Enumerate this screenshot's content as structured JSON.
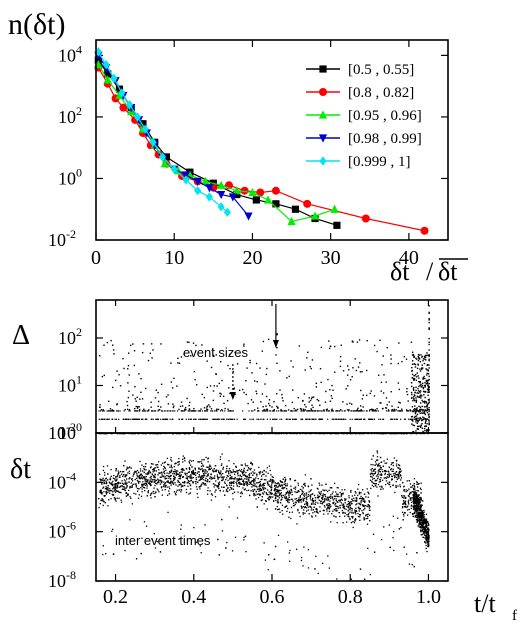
{
  "chart_data": [
    {
      "type": "line",
      "ylabel": "n(δt)",
      "xlabel": "δt/δt̄",
      "xlabel_parts": [
        "δt",
        "/",
        "δt"
      ],
      "xlim": [
        0,
        45
      ],
      "ylim_log10": [
        -2,
        4.5
      ],
      "yscale": "log",
      "x_ticks": [
        0,
        10,
        20,
        30,
        40
      ],
      "y_ticks": [
        {
          "base": "10",
          "exp": "4"
        },
        {
          "base": "10",
          "exp": "2"
        },
        {
          "base": "10",
          "exp": "0"
        },
        {
          "base": "10",
          "exp": "-2"
        }
      ],
      "y_tick_exps": [
        4,
        2,
        0,
        -2
      ],
      "legend": "top-right",
      "series": [
        {
          "name": "[0.5 , 0.55]",
          "color": "#000000",
          "marker": "square",
          "x": [
            0.3,
            1.5,
            3,
            4.5,
            6,
            7.5,
            9,
            12,
            15,
            18,
            20.5,
            23,
            25.5,
            28,
            30.8
          ],
          "y": [
            7000,
            2500,
            800,
            200,
            60,
            15,
            5,
            1.6,
            0.7,
            0.3,
            0.2,
            0.15,
            0.1,
            0.05,
            0.03
          ]
        },
        {
          "name": "[0.8 , 0.82]",
          "color": "#ff0000",
          "marker": "circle",
          "x": [
            0.3,
            1.5,
            2.5,
            3.5,
            5,
            6,
            7,
            8,
            9,
            11,
            13,
            15,
            17,
            19,
            21,
            23,
            27,
            34.5,
            42
          ],
          "y": [
            4000,
            1200,
            400,
            200,
            80,
            30,
            12,
            6,
            3,
            1.2,
            0.8,
            0.5,
            0.6,
            0.4,
            0.35,
            0.4,
            0.15,
            0.05,
            0.02
          ]
        },
        {
          "name": "[0.95 , 0.96]",
          "color": "#00ee00",
          "marker": "triangle",
          "x": [
            0.3,
            1.5,
            3,
            4.5,
            6,
            7.5,
            8.8,
            10.5,
            12,
            14,
            16,
            18,
            20,
            22,
            25,
            28,
            30.5
          ],
          "y": [
            5000,
            1600,
            500,
            150,
            40,
            12,
            3,
            1.8,
            1.3,
            0.8,
            0.6,
            0.4,
            0.35,
            0.2,
            0.04,
            0.06,
            0.1
          ]
        },
        {
          "name": "[0.98 , 0.99]",
          "color": "#0000cc",
          "marker": "triangle-down",
          "x": [
            0.3,
            1.3,
            2.5,
            3.5,
            4.5,
            5.5,
            6.5,
            7.5,
            8.5,
            10,
            11.5,
            13,
            14.5,
            16,
            17.5,
            19.5
          ],
          "y": [
            10000,
            4000,
            1500,
            500,
            200,
            80,
            30,
            12,
            5,
            2,
            1.3,
            0.8,
            0.5,
            0.3,
            0.25,
            0.06
          ]
        },
        {
          "name": "[0.999 , 1]",
          "color": "#00e5ee",
          "marker": "diamond",
          "x": [
            0.3,
            1.3,
            2.3,
            3.3,
            4.3,
            5.3,
            6.3,
            7.3,
            8.5,
            10,
            11.5,
            13,
            14.5,
            16,
            16.8
          ],
          "y": [
            13000,
            5000,
            1800,
            600,
            250,
            100,
            40,
            15,
            5,
            2,
            0.9,
            0.4,
            0.25,
            0.12,
            0.08
          ]
        }
      ]
    },
    {
      "type": "scatter",
      "ylabel": "Δ",
      "yscale": "log",
      "ylim_log10": [
        0,
        2.8
      ],
      "y_ticks": [
        {
          "base": "10",
          "exp": "2"
        },
        {
          "base": "10",
          "exp": "1"
        },
        {
          "base": "10",
          "exp": "0"
        }
      ],
      "y_tick_exps": [
        2,
        1,
        0
      ],
      "annotation": "event sizes",
      "arrows_at_t": [
        0.5,
        0.61
      ]
    },
    {
      "type": "scatter",
      "ylabel": "δt",
      "xlabel": "t/t_f",
      "xlabel_main": "t/t",
      "xlabel_sub": "f",
      "yscale": "log",
      "xlim": [
        0.15,
        1.05
      ],
      "ylim_log10": [
        -8,
        -2
      ],
      "x_ticks": [
        "0.2",
        "0.4",
        "0.6",
        "0.8",
        "1.0"
      ],
      "x_tick_vals": [
        0.2,
        0.4,
        0.6,
        0.8,
        1.0
      ],
      "y_ticks": [
        {
          "base": "10",
          "exp": "-2"
        },
        {
          "base": "10",
          "exp": "-4"
        },
        {
          "base": "10",
          "exp": "-6"
        },
        {
          "base": "10",
          "exp": "-8"
        }
      ],
      "y_tick_exps": [
        -2,
        -4,
        -6,
        -8
      ],
      "annotation": "inter event times"
    }
  ]
}
